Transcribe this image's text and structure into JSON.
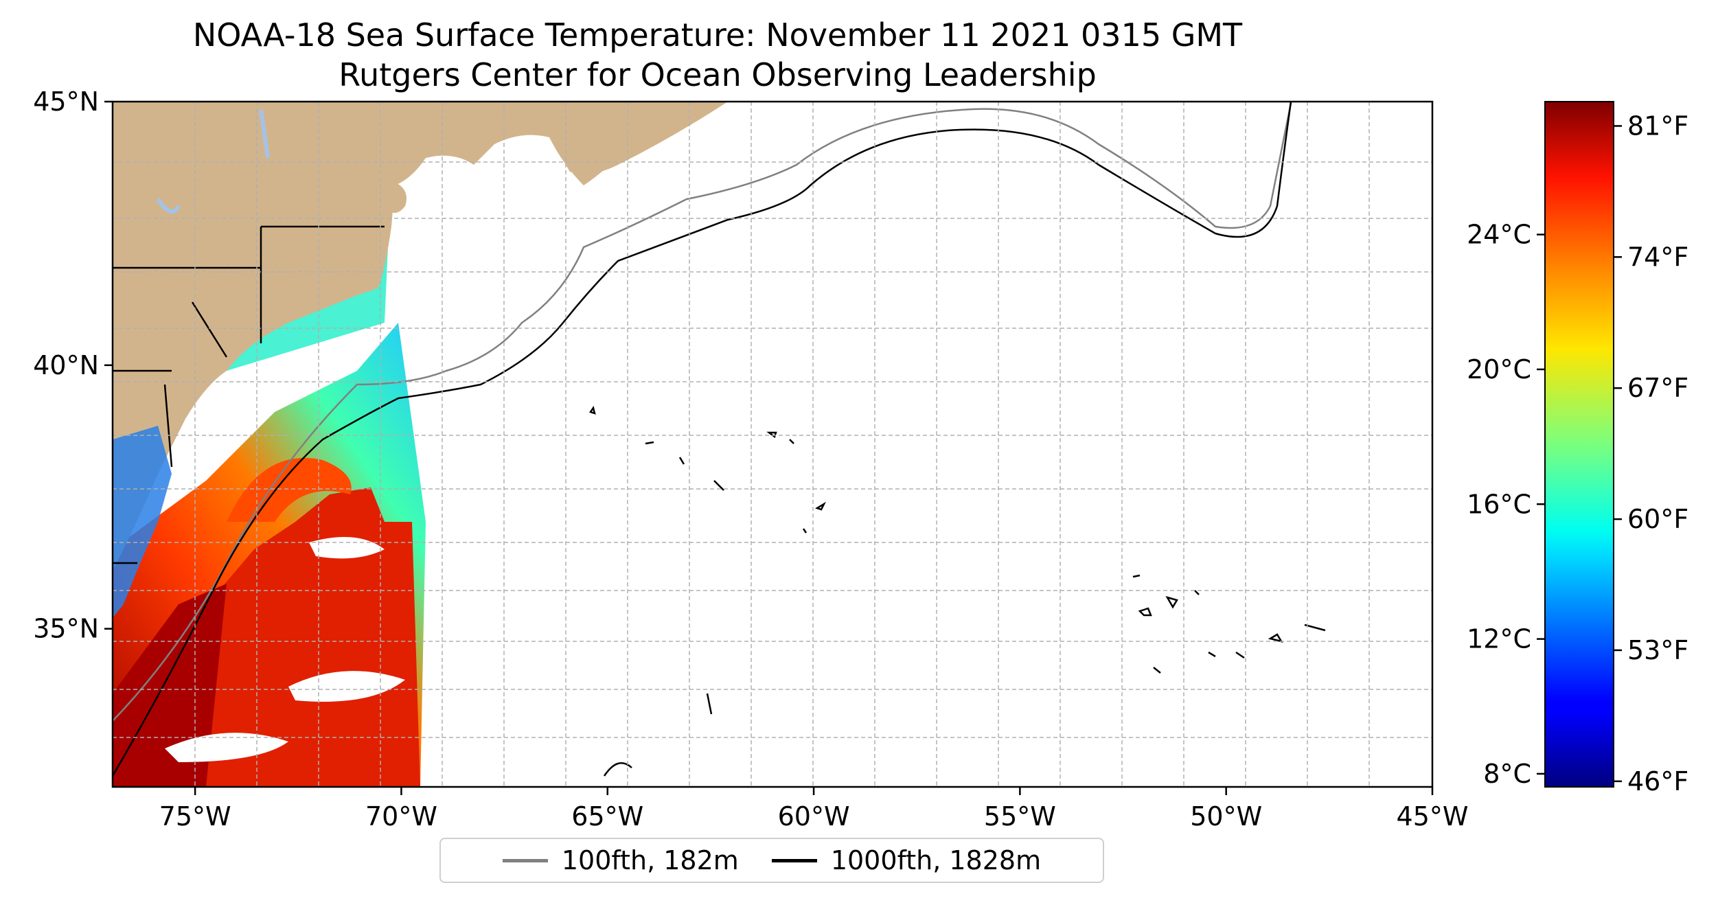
{
  "title": {
    "line1": "NOAA-18 Sea Surface Temperature: November 11 2021 0315 GMT",
    "line2": "Rutgers Center for Ocean Observing Leadership"
  },
  "map": {
    "lon_range": [
      -77,
      -45
    ],
    "lat_range": [
      32,
      45
    ],
    "lon_ticks": [
      {
        "value": -75,
        "label": "75°W"
      },
      {
        "value": -70,
        "label": "70°W"
      },
      {
        "value": -65,
        "label": "65°W"
      },
      {
        "value": -60,
        "label": "60°W"
      },
      {
        "value": -55,
        "label": "55°W"
      },
      {
        "value": -50,
        "label": "50°W"
      },
      {
        "value": -45,
        "label": "45°W"
      }
    ],
    "lat_ticks": [
      {
        "value": 45,
        "label": "45°N"
      },
      {
        "value": 40,
        "label": "40°N"
      },
      {
        "value": 35,
        "label": "35°N"
      }
    ],
    "gridlines": true,
    "land_color": "#d2b48c",
    "water_color": "#a4c3e8"
  },
  "colorbar": {
    "colormap": "jet",
    "celsius_ticks": [
      {
        "value": 24,
        "label": "24°C"
      },
      {
        "value": 20,
        "label": "20°C"
      },
      {
        "value": 16,
        "label": "16°C"
      },
      {
        "value": 12,
        "label": "12°C"
      },
      {
        "value": 8,
        "label": "8°C"
      }
    ],
    "fahrenheit_ticks": [
      {
        "value": 81,
        "label": "81°F"
      },
      {
        "value": 74,
        "label": "74°F"
      },
      {
        "value": 67,
        "label": "67°F"
      },
      {
        "value": 60,
        "label": "60°F"
      },
      {
        "value": 53,
        "label": "53°F"
      },
      {
        "value": 46,
        "label": "46°F"
      }
    ]
  },
  "legend": {
    "items": [
      {
        "label": "100fth, 182m",
        "color": "#808080"
      },
      {
        "label": "1000fth, 1828m",
        "color": "#000000"
      }
    ]
  }
}
